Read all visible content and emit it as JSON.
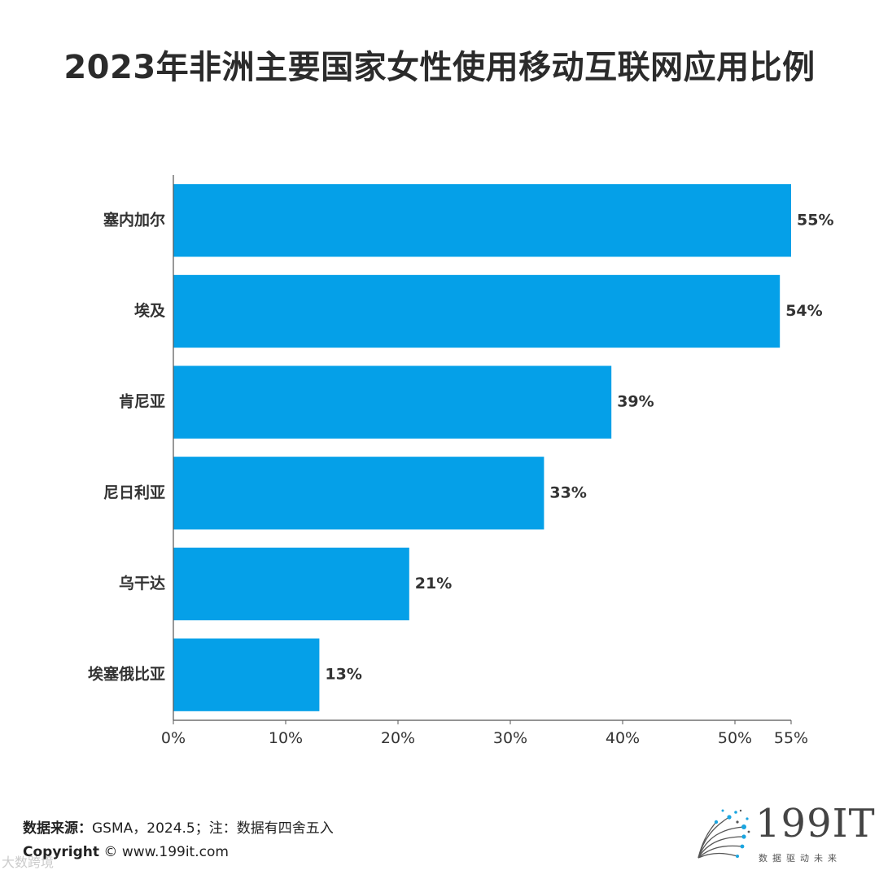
{
  "title": "2023年非洲主要国家女性使用移动互联网应用比例",
  "chart_data": {
    "type": "bar",
    "orientation": "horizontal",
    "title": "2023年非洲主要国家女性使用移动互联网应用比例",
    "categories": [
      "塞内加尔",
      "埃及",
      "肯尼亚",
      "尼日利亚",
      "乌干达",
      "埃塞俄比亚"
    ],
    "values": [
      55,
      54,
      39,
      33,
      21,
      13
    ],
    "value_labels": [
      "55%",
      "54%",
      "39%",
      "33%",
      "21%",
      "13%"
    ],
    "xlim": [
      0,
      55
    ],
    "xticks": [
      0,
      10,
      20,
      30,
      40,
      50,
      55
    ],
    "xtick_labels": [
      "0%",
      "10%",
      "20%",
      "30%",
      "40%",
      "50%",
      "55%"
    ],
    "bar_color": "#05a0e8",
    "grid": false,
    "legend": "none"
  },
  "footer": {
    "source_label": "数据来源：",
    "source_text": "GSMA，2024.5；注：数据有四舍五入",
    "copyright_label": "Copyright",
    "copyright_text": "©  www.199it.com"
  },
  "logo": {
    "text": "199IT",
    "tagline": "数据驱动未来"
  },
  "watermark": "大数跨境"
}
